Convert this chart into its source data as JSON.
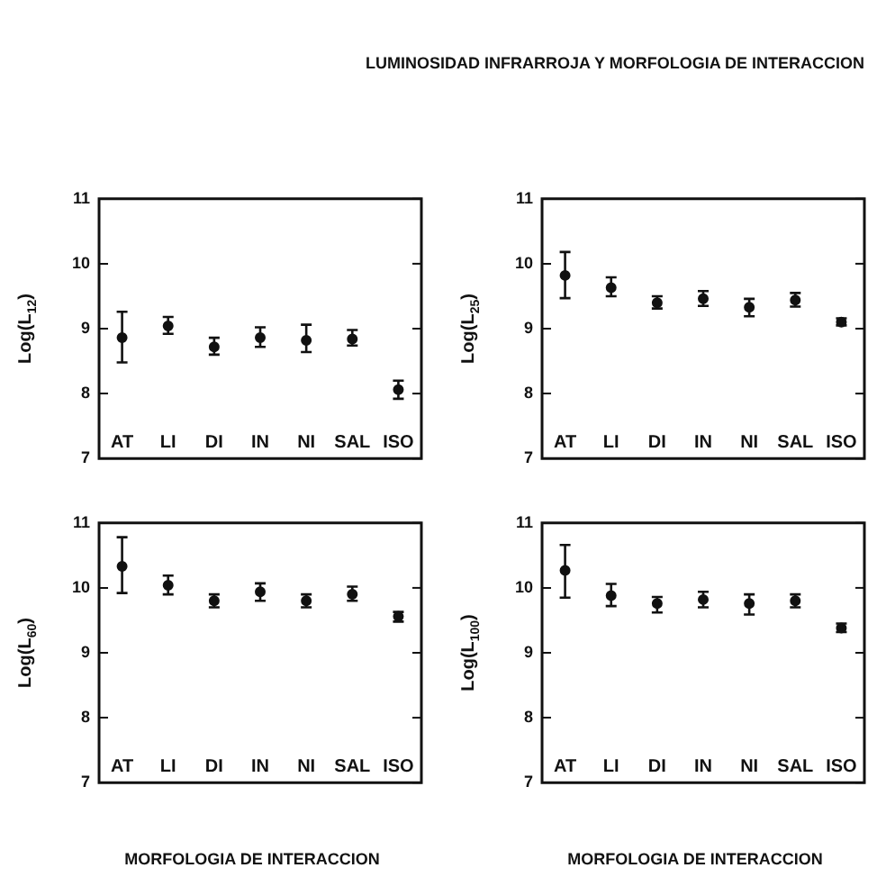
{
  "chart_data": [
    {
      "type": "scatter",
      "ylabel": "Log(L$_{12}$)",
      "categories": [
        "AT",
        "LI",
        "DI",
        "IN",
        "NI",
        "SAL",
        "ISO"
      ],
      "values": [
        8.86,
        9.04,
        8.72,
        8.86,
        8.82,
        8.84,
        8.06
      ],
      "errors": [
        [
          8.48,
          9.26
        ],
        [
          8.92,
          9.18
        ],
        [
          8.6,
          8.86
        ],
        [
          8.72,
          9.02
        ],
        [
          8.64,
          9.06
        ],
        [
          8.74,
          8.98
        ],
        [
          7.92,
          8.2
        ]
      ],
      "color": "#111111",
      "marker": "circle",
      "ylim": [
        7,
        11
      ],
      "yticks": [
        7,
        8,
        9,
        10,
        11
      ],
      "grid": false,
      "legend": false
    },
    {
      "type": "scatter",
      "title": "LUMINOSIDAD INFRARROJA Y MORFOLOGIA DE INTERACCION",
      "ylabel": "Log(L$_{25}$)",
      "categories": [
        "AT",
        "LI",
        "DI",
        "IN",
        "NI",
        "SAL",
        "ISO"
      ],
      "values": [
        9.82,
        9.63,
        9.4,
        9.46,
        9.33,
        9.44,
        9.1
      ],
      "errors": [
        [
          9.47,
          10.18
        ],
        [
          9.5,
          9.79
        ],
        [
          9.31,
          9.5
        ],
        [
          9.35,
          9.58
        ],
        [
          9.19,
          9.46
        ],
        [
          9.34,
          9.55
        ],
        [
          9.05,
          9.16
        ]
      ],
      "color": "#111111",
      "marker": "circle",
      "ylim": [
        7,
        11
      ],
      "yticks": [
        7,
        8,
        9,
        10,
        11
      ],
      "grid": false,
      "legend": false
    },
    {
      "type": "scatter",
      "ylabel": "Log(L$_{60}$)",
      "xlabel": "MORFOLOGIA DE INTERACCION",
      "categories": [
        "AT",
        "LI",
        "DI",
        "IN",
        "NI",
        "SAL",
        "ISO"
      ],
      "values": [
        10.33,
        10.04,
        9.8,
        9.94,
        9.8,
        9.9,
        9.56
      ],
      "errors": [
        [
          9.92,
          10.78
        ],
        [
          9.9,
          10.19
        ],
        [
          9.7,
          9.9
        ],
        [
          9.8,
          10.07
        ],
        [
          9.7,
          9.9
        ],
        [
          9.8,
          10.02
        ],
        [
          9.48,
          9.63
        ]
      ],
      "color": "#111111",
      "marker": "circle",
      "ylim": [
        7,
        11
      ],
      "yticks": [
        7,
        8,
        9,
        10,
        11
      ],
      "grid": false,
      "legend": false
    },
    {
      "type": "scatter",
      "ylabel": "Log(L$_{100}$)",
      "xlabel": "MORFOLOGIA DE INTERACCION",
      "categories": [
        "AT",
        "LI",
        "DI",
        "IN",
        "NI",
        "SAL",
        "ISO"
      ],
      "values": [
        10.27,
        9.88,
        9.76,
        9.82,
        9.76,
        9.8,
        9.38
      ],
      "errors": [
        [
          9.85,
          10.66
        ],
        [
          9.72,
          10.06
        ],
        [
          9.62,
          9.86
        ],
        [
          9.7,
          9.94
        ],
        [
          9.59,
          9.9
        ],
        [
          9.7,
          9.9
        ],
        [
          9.32,
          9.45
        ]
      ],
      "color": "#111111",
      "marker": "circle",
      "ylim": [
        7,
        11
      ],
      "yticks": [
        7,
        8,
        9,
        10,
        11
      ],
      "grid": false,
      "legend": false
    }
  ]
}
